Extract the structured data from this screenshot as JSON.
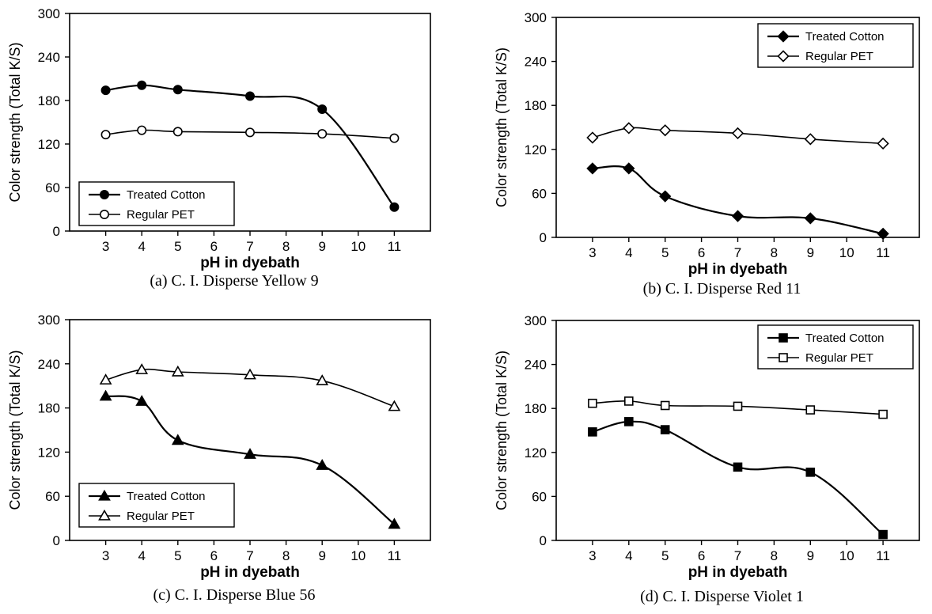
{
  "chart_data": [
    {
      "type": "line",
      "caption": "(a) C. I. Disperse Yellow 9",
      "xlabel": "pH  in dyebath",
      "ylabel": "Color strength (Total K/S)",
      "xlim": [
        2,
        12
      ],
      "ylim": [
        0,
        300
      ],
      "xticks": [
        3,
        4,
        5,
        6,
        7,
        8,
        9,
        10,
        11
      ],
      "yticks": [
        0,
        60,
        120,
        180,
        240,
        300
      ],
      "grid": false,
      "legend_position": "bottom-left",
      "series": [
        {
          "name": "Treated Cotton",
          "marker": "filled-circle",
          "x": [
            3,
            4,
            5,
            7,
            9,
            11
          ],
          "y": [
            194,
            201,
            195,
            186,
            168,
            33
          ]
        },
        {
          "name": "Regular PET",
          "marker": "open-circle",
          "x": [
            3,
            4,
            5,
            7,
            9,
            11
          ],
          "y": [
            133,
            139,
            137,
            136,
            134,
            128
          ]
        }
      ]
    },
    {
      "type": "line",
      "caption": "(b) C. I. Disperse Red 11",
      "xlabel": "pH  in dyebath",
      "ylabel": "Color strength (Total K/S)",
      "xlim": [
        2,
        12
      ],
      "ylim": [
        0,
        300
      ],
      "xticks": [
        3,
        4,
        5,
        6,
        7,
        8,
        9,
        10,
        11
      ],
      "yticks": [
        0,
        60,
        120,
        180,
        240,
        300
      ],
      "grid": false,
      "legend_position": "top-right",
      "series": [
        {
          "name": "Treated Cotton",
          "marker": "filled-diamond",
          "x": [
            3,
            4,
            5,
            7,
            9,
            11
          ],
          "y": [
            94,
            94,
            56,
            29,
            26,
            5
          ]
        },
        {
          "name": "Regular PET",
          "marker": "open-diamond",
          "x": [
            3,
            4,
            5,
            7,
            9,
            11
          ],
          "y": [
            136,
            149,
            146,
            142,
            134,
            128
          ]
        }
      ]
    },
    {
      "type": "line",
      "caption": "(c) C. I. Disperse Blue 56",
      "xlabel": "pH  in dyebath",
      "ylabel": "Color strength (Total K/S)",
      "xlim": [
        2,
        12
      ],
      "ylim": [
        0,
        300
      ],
      "xticks": [
        3,
        4,
        5,
        6,
        7,
        8,
        9,
        10,
        11
      ],
      "yticks": [
        0,
        60,
        120,
        180,
        240,
        300
      ],
      "grid": false,
      "legend_position": "bottom-left",
      "series": [
        {
          "name": "Treated Cotton",
          "marker": "filled-triangle",
          "x": [
            3,
            4,
            5,
            7,
            9,
            11
          ],
          "y": [
            196,
            189,
            136,
            117,
            102,
            22
          ]
        },
        {
          "name": "Regular PET",
          "marker": "open-triangle",
          "x": [
            3,
            4,
            5,
            7,
            9,
            11
          ],
          "y": [
            218,
            232,
            229,
            225,
            217,
            182
          ]
        }
      ]
    },
    {
      "type": "line",
      "caption": "(d) C. I. Disperse Violet 1",
      "xlabel": "pH  in dyebath",
      "ylabel": "Color strength (Total K/S)",
      "xlim": [
        2,
        12
      ],
      "ylim": [
        0,
        300
      ],
      "xticks": [
        3,
        4,
        5,
        6,
        7,
        8,
        9,
        10,
        11
      ],
      "yticks": [
        0,
        60,
        120,
        180,
        240,
        300
      ],
      "grid": false,
      "legend_position": "top-right",
      "series": [
        {
          "name": "Treated Cotton",
          "marker": "filled-square",
          "x": [
            3,
            4,
            5,
            7,
            9,
            11
          ],
          "y": [
            148,
            162,
            151,
            100,
            93,
            8
          ]
        },
        {
          "name": "Regular PET",
          "marker": "open-square",
          "x": [
            3,
            4,
            5,
            7,
            9,
            11
          ],
          "y": [
            187,
            190,
            184,
            183,
            178,
            172
          ]
        }
      ]
    }
  ]
}
